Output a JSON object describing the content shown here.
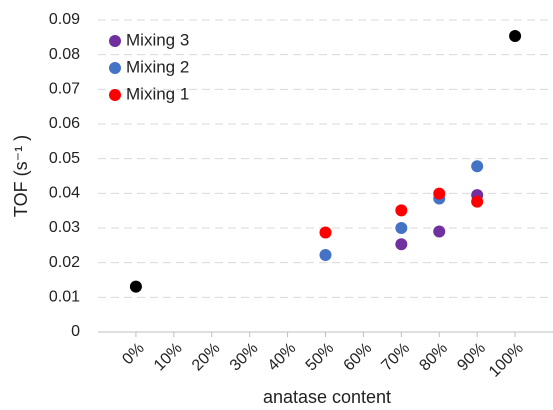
{
  "chart_data": {
    "type": "scatter",
    "x_label": "anatase content",
    "y_label": "TOF (s⁻¹ )",
    "xlim": [
      -10,
      110
    ],
    "xticks": [
      {
        "value": 0,
        "label": "0%"
      },
      {
        "value": 10,
        "label": "10%"
      },
      {
        "value": 20,
        "label": "20%"
      },
      {
        "value": 30,
        "label": "30%"
      },
      {
        "value": 40,
        "label": "40%"
      },
      {
        "value": 50,
        "label": "50%"
      },
      {
        "value": 60,
        "label": "60%"
      },
      {
        "value": 70,
        "label": "70%"
      },
      {
        "value": 80,
        "label": "80%"
      },
      {
        "value": 90,
        "label": "90%"
      },
      {
        "value": 100,
        "label": "100%"
      }
    ],
    "ylim": [
      0,
      0.09
    ],
    "yticks": [
      0,
      0.01,
      0.02,
      0.03,
      0.04,
      0.05,
      0.06,
      0.07,
      0.08,
      0.09
    ],
    "grid": true,
    "legend": "top-left",
    "series": [
      {
        "name": "Mixing 3",
        "color": "#7030a0",
        "x": [
          70,
          80,
          90
        ],
        "values": [
          0.0253,
          0.029,
          0.0395
        ]
      },
      {
        "name": "Mixing 2",
        "color": "#4472c4",
        "x": [
          50,
          70,
          80,
          90
        ],
        "values": [
          0.0222,
          0.03,
          0.0385,
          0.0478
        ]
      },
      {
        "name": "Mixing 1",
        "color": "#ff0000",
        "x": [
          50,
          70,
          80,
          90
        ],
        "values": [
          0.0287,
          0.0351,
          0.0399,
          0.0376
        ]
      },
      {
        "color": "#000000",
        "x": [
          0,
          100
        ],
        "values": [
          0.0131,
          0.0854
        ]
      }
    ]
  }
}
